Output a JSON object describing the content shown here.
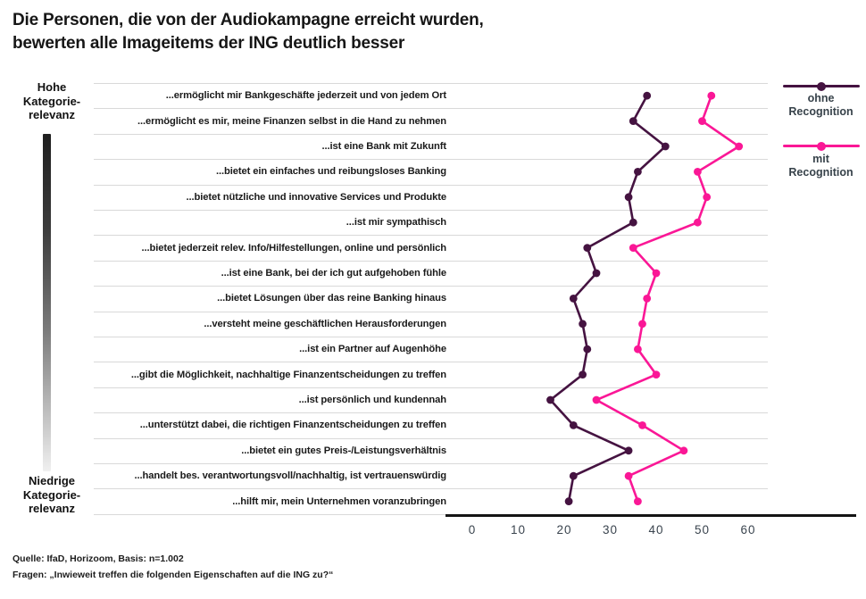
{
  "title": "Die Personen, die von der Audiokampagne erreicht wurden,\nbewerten alle Imageitems der ING deutlich besser",
  "left_axis": {
    "top_label": "Hohe\nKategorie-\nrelevanz",
    "bottom_label": "Niedrige\nKategorie-\nrelevanz"
  },
  "legend": [
    {
      "label": "ohne\nRecognition",
      "color": "#451341"
    },
    {
      "label": "mit\nRecognition",
      "color": "#fa1796"
    }
  ],
  "footer": {
    "source_line": "Quelle: IfaD, Horizoom, Basis: n=1.002",
    "question_line": "Fragen: „Inwieweit treffen die folgenden Eigenschaften auf die ING zu?“"
  },
  "chart_data": {
    "type": "line",
    "variant": "horizontal-dot-plot",
    "title": "Die Personen, die von der Audiokampagne erreicht wurden, bewerten alle Imageitems der ING deutlich besser",
    "categories": [
      "...ermöglicht mir Bankgeschäfte jederzeit und von jedem Ort",
      "...ermöglicht es mir, meine Finanzen selbst in die Hand zu nehmen",
      "...ist eine Bank mit Zukunft",
      "...bietet ein einfaches und reibungsloses Banking",
      "...bietet nützliche und innovative Services und Produkte",
      "...ist mir sympathisch",
      "...bietet jederzeit relev. Info/Hilfestellungen, online und persönlich",
      "...ist eine Bank, bei der ich gut aufgehoben fühle",
      "...bietet Lösungen über das reine Banking hinaus",
      "...versteht meine geschäftlichen Herausforderungen",
      "...ist ein Partner auf Augenhöhe",
      "...gibt die Möglichkeit, nachhaltige Finanzentscheidungen zu treffen",
      "...ist persönlich und kundennah",
      "...unterstützt dabei, die richtigen Finanzentscheidungen zu treffen",
      "...bietet ein gutes Preis-/Leistungsverhältnis",
      "...handelt bes. verantwortungsvoll/nachhaltig, ist vertrauenswürdig",
      "...hilft mir, mein Unternehmen voranzubringen"
    ],
    "series": [
      {
        "name": "ohne Recognition",
        "color": "#451341",
        "values": [
          38,
          35,
          42,
          36,
          34,
          35,
          25,
          27,
          22,
          24,
          25,
          24,
          17,
          22,
          34,
          22,
          21
        ]
      },
      {
        "name": "mit Recognition",
        "color": "#fa1796",
        "values": [
          52,
          50,
          58,
          49,
          51,
          49,
          35,
          40,
          38,
          37,
          36,
          40,
          27,
          37,
          46,
          34,
          36
        ]
      }
    ],
    "x_axis": {
      "ticks": [
        0,
        10,
        20,
        30,
        40,
        50,
        60
      ],
      "min": 0,
      "max": 60
    },
    "y_axis_annotation": {
      "top": "Hohe Kategorie-relevanz",
      "bottom": "Niedrige Kategorie-relevanz"
    },
    "grid": "row-separators",
    "legend_position": "right"
  }
}
